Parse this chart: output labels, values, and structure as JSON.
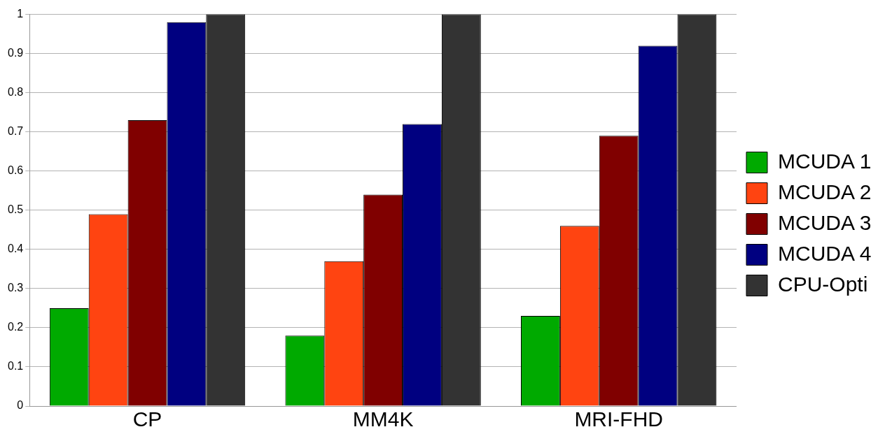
{
  "chart_data": {
    "type": "bar",
    "categories": [
      "CP",
      "MM4K",
      "MRI-FHD"
    ],
    "series": [
      {
        "name": "MCUDA 1",
        "color": "#00aa00",
        "values": [
          0.25,
          0.18,
          0.23
        ]
      },
      {
        "name": "MCUDA 2",
        "color": "#ff4411",
        "values": [
          0.49,
          0.37,
          0.46
        ]
      },
      {
        "name": "MCUDA 3",
        "color": "#800000",
        "values": [
          0.73,
          0.54,
          0.69
        ]
      },
      {
        "name": "MCUDA 4",
        "color": "#000080",
        "values": [
          0.98,
          0.72,
          0.92
        ]
      },
      {
        "name": "CPU-Opti",
        "color": "#333333",
        "values": [
          1,
          1,
          1
        ]
      }
    ],
    "ylim": [
      0,
      1
    ],
    "yticks": [
      0,
      0.1,
      0.2,
      0.3,
      0.4,
      0.5,
      0.6,
      0.7,
      0.8,
      0.9,
      1
    ],
    "grid": "y",
    "legend": "right"
  }
}
